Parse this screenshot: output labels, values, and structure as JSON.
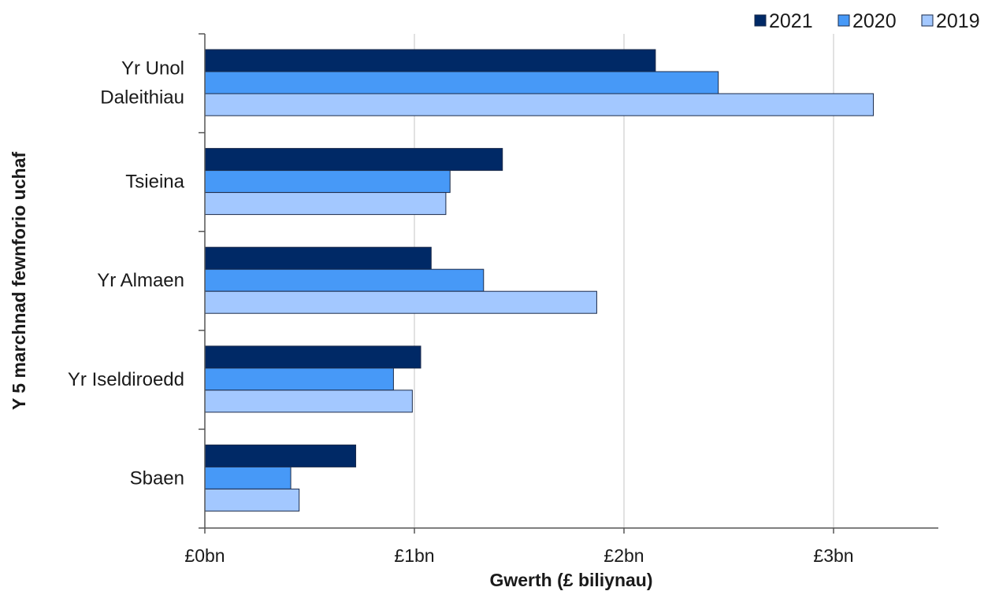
{
  "chart_data": {
    "type": "bar",
    "orientation": "horizontal",
    "categories": [
      "Yr Unol Daleithiau",
      "Tsieina",
      "Yr Almaen",
      "Yr Iseldiroedd",
      "Sbaen"
    ],
    "category_lines": [
      [
        "Yr Unol",
        "Daleithiau"
      ],
      [
        "Tsieina"
      ],
      [
        "Yr Almaen"
      ],
      [
        "Yr Iseldiroedd"
      ],
      [
        "Sbaen"
      ]
    ],
    "series": [
      {
        "name": "2021",
        "color": "#002966",
        "values": [
          2.15,
          1.42,
          1.08,
          1.03,
          0.72
        ]
      },
      {
        "name": "2020",
        "color": "#4799f7",
        "values": [
          2.45,
          1.17,
          1.33,
          0.9,
          0.41
        ]
      },
      {
        "name": "2019",
        "color": "#a3c8ff",
        "values": [
          3.19,
          1.15,
          1.87,
          0.99,
          0.45
        ]
      }
    ],
    "xlabel": "Gwerth (£ biliynau)",
    "ylabel": "Y 5 marchnad fewnforio uchaf",
    "xlim": [
      0,
      3.5
    ],
    "x_ticks": [
      0,
      1,
      2,
      3
    ],
    "x_tick_labels": [
      "£0bn",
      "£1bn",
      "£2bn",
      "£3bn"
    ],
    "grid": "vertical",
    "legend_position": "top-right"
  }
}
